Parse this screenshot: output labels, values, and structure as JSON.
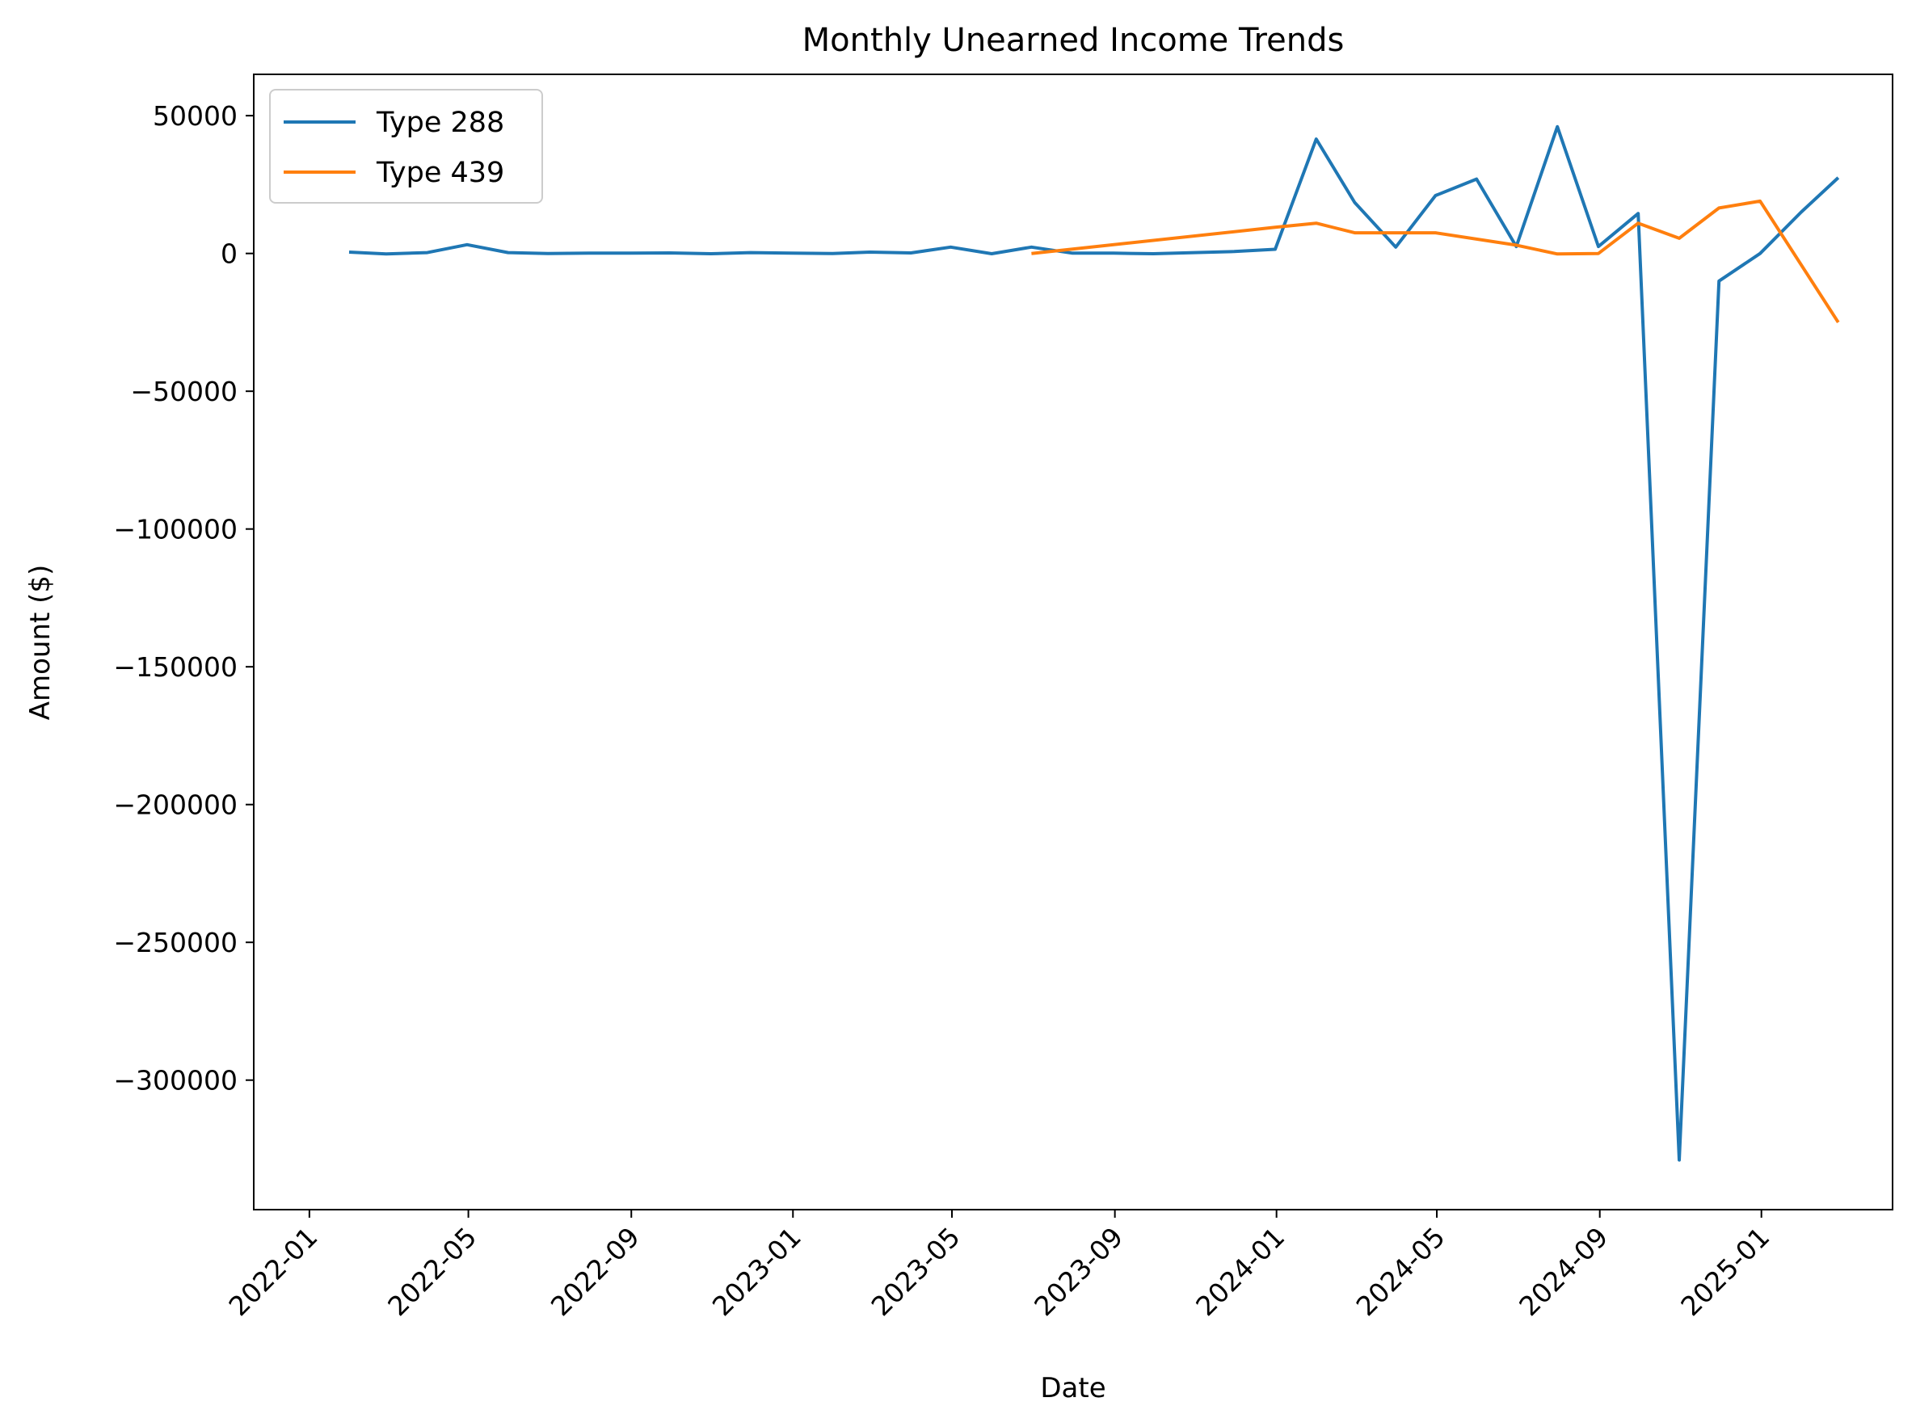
{
  "chart_data": {
    "type": "line",
    "title": "Monthly Unearned Income Trends",
    "xlabel": "Date",
    "ylabel": "Amount ($)",
    "xlim": [
      "2021-11-20",
      "2025-04-10"
    ],
    "ylim": [
      -347000,
      65000
    ],
    "x_ticks": [
      "2022-01",
      "2022-05",
      "2022-09",
      "2023-01",
      "2023-05",
      "2023-09",
      "2024-01",
      "2024-05",
      "2024-09",
      "2025-01"
    ],
    "y_ticks": [
      50000,
      0,
      -50000,
      -100000,
      -150000,
      -200000,
      -250000,
      -300000
    ],
    "y_tick_labels": [
      "50000",
      "0",
      "−50000",
      "−100000",
      "−150000",
      "−200000",
      "−250000",
      "−300000"
    ],
    "legend_position": "upper-left",
    "grid": false,
    "series": [
      {
        "name": "Type 288",
        "color": "#1f77b4",
        "points": [
          [
            "2022-01-31",
            500
          ],
          [
            "2022-02-28",
            -200
          ],
          [
            "2022-03-31",
            300
          ],
          [
            "2022-04-30",
            3200
          ],
          [
            "2022-05-31",
            300
          ],
          [
            "2022-06-30",
            0
          ],
          [
            "2022-07-31",
            100
          ],
          [
            "2022-08-31",
            100
          ],
          [
            "2022-09-30",
            200
          ],
          [
            "2022-10-31",
            -100
          ],
          [
            "2022-11-30",
            300
          ],
          [
            "2022-12-31",
            100
          ],
          [
            "2023-01-31",
            0
          ],
          [
            "2023-02-28",
            500
          ],
          [
            "2023-03-31",
            200
          ],
          [
            "2023-04-30",
            2300
          ],
          [
            "2023-05-31",
            -100
          ],
          [
            "2023-06-30",
            2300
          ],
          [
            "2023-07-31",
            100
          ],
          [
            "2023-08-31",
            100
          ],
          [
            "2023-09-30",
            -100
          ],
          [
            "2023-10-31",
            300
          ],
          [
            "2023-11-30",
            700
          ],
          [
            "2023-12-31",
            1500
          ],
          [
            "2024-01-31",
            41500
          ],
          [
            "2024-02-29",
            18500
          ],
          [
            "2024-03-31",
            2300
          ],
          [
            "2024-04-30",
            21000
          ],
          [
            "2024-05-31",
            27000
          ],
          [
            "2024-06-30",
            2500
          ],
          [
            "2024-07-31",
            46000
          ],
          [
            "2024-08-31",
            2500
          ],
          [
            "2024-09-30",
            14500
          ],
          [
            "2024-10-31",
            -329000
          ],
          [
            "2024-11-30",
            -10000
          ],
          [
            "2024-12-31",
            0
          ],
          [
            "2025-01-31",
            15000
          ],
          [
            "2025-02-28",
            27500
          ]
        ]
      },
      {
        "name": "Type 439",
        "color": "#ff7f0e",
        "points": [
          [
            "2023-06-30",
            0
          ],
          [
            "2023-12-31",
            9500
          ],
          [
            "2024-01-31",
            11000
          ],
          [
            "2024-02-29",
            7500
          ],
          [
            "2024-03-31",
            7500
          ],
          [
            "2024-04-30",
            7500
          ],
          [
            "2024-06-30",
            3000
          ],
          [
            "2024-07-31",
            -200
          ],
          [
            "2024-08-31",
            0
          ],
          [
            "2024-09-30",
            11000
          ],
          [
            "2024-10-31",
            5500
          ],
          [
            "2024-11-30",
            16500
          ],
          [
            "2024-12-31",
            19000
          ],
          [
            "2025-02-28",
            -25000
          ]
        ]
      }
    ]
  }
}
